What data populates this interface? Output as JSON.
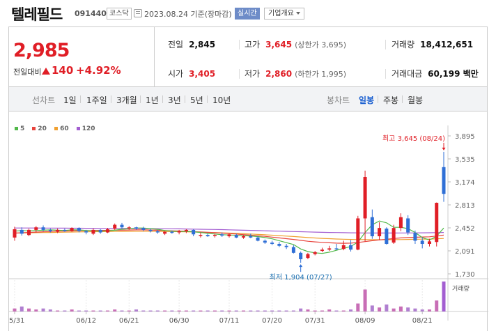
{
  "header": {
    "name": "텔레필드",
    "code": "091440",
    "market": "코스닥",
    "date": "2023.08.24 기준(장마감)",
    "realtime_badge": "실시간",
    "company_info_button": "기업개요"
  },
  "price": {
    "current": "2,985",
    "change_label": "전일대비",
    "change": "140",
    "change_pct": "+4.92%"
  },
  "stats": {
    "prev_label": "전일",
    "prev": "2,845",
    "open_label": "시가",
    "open": "3,405",
    "high_label": "고가",
    "high": "3,645",
    "upper_limit": "(상한가 3,695)",
    "low_label": "저가",
    "low": "2,860",
    "lower_limit": "(하한가 1,995)",
    "volume_label": "거래량",
    "volume": "18,412,651",
    "amount_label": "거래대금",
    "amount": "60,199 백만"
  },
  "toolbar": {
    "line_label": "선차트",
    "periods": [
      "1일",
      "1주일",
      "3개월",
      "1년",
      "3년",
      "5년",
      "10년"
    ],
    "candle_label": "봉차트",
    "candle_periods": [
      "일봉",
      "주봉",
      "월봉"
    ],
    "active_candle": "일봉"
  },
  "colors": {
    "up": "#e01e26",
    "down": "#2f6fd6",
    "ma5": "#50b848",
    "ma20": "#e8433c",
    "ma60": "#f0a030",
    "ma120": "#a35ed1"
  },
  "chart_data": {
    "type": "candlestick",
    "legend": [
      "5",
      "20",
      "60",
      "120"
    ],
    "y_ticks": [
      "3,895",
      "3,535",
      "3,174",
      "2,813",
      "2,452",
      "2,091",
      "1,730"
    ],
    "ylim": [
      1730,
      3895
    ],
    "x_ticks": [
      "05/31",
      "06/12",
      "06/21",
      "06/30",
      "07/11",
      "07/20",
      "07/31",
      "08/09",
      "08/21"
    ],
    "x_tick_index": [
      0,
      10,
      16,
      23,
      30,
      36,
      42,
      49,
      57
    ],
    "high_annotation": "최고 3,645 (08/24)",
    "low_annotation": "최저 1,904 (07/27)",
    "volume_label": "거래량",
    "candles": [
      {
        "o": 2300,
        "h": 2470,
        "l": 2250,
        "c": 2430
      },
      {
        "o": 2420,
        "h": 2460,
        "l": 2330,
        "c": 2360
      },
      {
        "o": 2340,
        "h": 2440,
        "l": 2320,
        "c": 2420
      },
      {
        "o": 2420,
        "h": 2480,
        "l": 2380,
        "c": 2460
      },
      {
        "o": 2460,
        "h": 2490,
        "l": 2400,
        "c": 2420
      },
      {
        "o": 2420,
        "h": 2440,
        "l": 2380,
        "c": 2400
      },
      {
        "o": 2390,
        "h": 2440,
        "l": 2370,
        "c": 2420
      },
      {
        "o": 2420,
        "h": 2440,
        "l": 2390,
        "c": 2400
      },
      {
        "o": 2400,
        "h": 2460,
        "l": 2390,
        "c": 2450
      },
      {
        "o": 2450,
        "h": 2460,
        "l": 2380,
        "c": 2400
      },
      {
        "o": 2400,
        "h": 2420,
        "l": 2350,
        "c": 2380
      },
      {
        "o": 2360,
        "h": 2440,
        "l": 2340,
        "c": 2420
      },
      {
        "o": 2420,
        "h": 2430,
        "l": 2360,
        "c": 2380
      },
      {
        "o": 2380,
        "h": 2450,
        "l": 2370,
        "c": 2430
      },
      {
        "o": 2440,
        "h": 2520,
        "l": 2420,
        "c": 2500
      },
      {
        "o": 2500,
        "h": 2530,
        "l": 2440,
        "c": 2460
      },
      {
        "o": 2450,
        "h": 2480,
        "l": 2420,
        "c": 2460
      },
      {
        "o": 2460,
        "h": 2470,
        "l": 2420,
        "c": 2440
      },
      {
        "o": 2450,
        "h": 2470,
        "l": 2400,
        "c": 2420
      },
      {
        "o": 2420,
        "h": 2440,
        "l": 2380,
        "c": 2400
      },
      {
        "o": 2400,
        "h": 2420,
        "l": 2360,
        "c": 2380
      },
      {
        "o": 2360,
        "h": 2400,
        "l": 2340,
        "c": 2390
      },
      {
        "o": 2390,
        "h": 2410,
        "l": 2360,
        "c": 2380
      },
      {
        "o": 2380,
        "h": 2420,
        "l": 2350,
        "c": 2400
      },
      {
        "o": 2400,
        "h": 2430,
        "l": 2370,
        "c": 2420
      },
      {
        "o": 2420,
        "h": 2430,
        "l": 2320,
        "c": 2350
      },
      {
        "o": 2330,
        "h": 2380,
        "l": 2300,
        "c": 2340
      },
      {
        "o": 2340,
        "h": 2360,
        "l": 2310,
        "c": 2320
      },
      {
        "o": 2330,
        "h": 2360,
        "l": 2300,
        "c": 2340
      },
      {
        "o": 2350,
        "h": 2380,
        "l": 2310,
        "c": 2330
      },
      {
        "o": 2320,
        "h": 2360,
        "l": 2300,
        "c": 2350
      },
      {
        "o": 2340,
        "h": 2360,
        "l": 2290,
        "c": 2300
      },
      {
        "o": 2300,
        "h": 2340,
        "l": 2280,
        "c": 2320
      },
      {
        "o": 2320,
        "h": 2360,
        "l": 2290,
        "c": 2300
      },
      {
        "o": 2300,
        "h": 2320,
        "l": 2240,
        "c": 2250
      },
      {
        "o": 2250,
        "h": 2270,
        "l": 2200,
        "c": 2220
      },
      {
        "o": 2220,
        "h": 2250,
        "l": 2180,
        "c": 2200
      },
      {
        "o": 2200,
        "h": 2230,
        "l": 2150,
        "c": 2170
      },
      {
        "o": 2170,
        "h": 2200,
        "l": 2120,
        "c": 2150
      },
      {
        "o": 2150,
        "h": 2180,
        "l": 2050,
        "c": 2060
      },
      {
        "o": 2060,
        "h": 2080,
        "l": 1904,
        "c": 1960
      },
      {
        "o": 1980,
        "h": 2060,
        "l": 1960,
        "c": 2040
      },
      {
        "o": 2040,
        "h": 2090,
        "l": 2020,
        "c": 2070
      },
      {
        "o": 2090,
        "h": 2140,
        "l": 2070,
        "c": 2110
      },
      {
        "o": 2110,
        "h": 2170,
        "l": 2090,
        "c": 2130
      },
      {
        "o": 2130,
        "h": 2200,
        "l": 2100,
        "c": 2120
      },
      {
        "o": 2120,
        "h": 2250,
        "l": 2100,
        "c": 2180
      },
      {
        "o": 2180,
        "h": 2260,
        "l": 2080,
        "c": 2110
      },
      {
        "o": 2110,
        "h": 2640,
        "l": 2100,
        "c": 2600
      },
      {
        "o": 2600,
        "h": 3350,
        "l": 2240,
        "c": 3250
      },
      {
        "o": 2620,
        "h": 2740,
        "l": 2280,
        "c": 2320
      },
      {
        "o": 2320,
        "h": 2540,
        "l": 2260,
        "c": 2450
      },
      {
        "o": 2440,
        "h": 2460,
        "l": 2190,
        "c": 2200
      },
      {
        "o": 2220,
        "h": 2500,
        "l": 2200,
        "c": 2450
      },
      {
        "o": 2450,
        "h": 2680,
        "l": 2400,
        "c": 2620
      },
      {
        "o": 2600,
        "h": 2650,
        "l": 2340,
        "c": 2380
      },
      {
        "o": 2370,
        "h": 2410,
        "l": 2200,
        "c": 2250
      },
      {
        "o": 2250,
        "h": 2300,
        "l": 2130,
        "c": 2200
      },
      {
        "o": 2200,
        "h": 2280,
        "l": 2160,
        "c": 2240
      },
      {
        "o": 2230,
        "h": 2850,
        "l": 2160,
        "c": 2845
      },
      {
        "o": 3405,
        "h": 3645,
        "l": 2860,
        "c": 2985
      }
    ],
    "ma5": [
      2400,
      2410,
      2405,
      2410,
      2415,
      2420,
      2415,
      2410,
      2420,
      2420,
      2410,
      2405,
      2400,
      2405,
      2415,
      2430,
      2440,
      2450,
      2450,
      2440,
      2430,
      2410,
      2400,
      2395,
      2395,
      2390,
      2380,
      2365,
      2355,
      2345,
      2340,
      2335,
      2330,
      2325,
      2315,
      2300,
      2280,
      2250,
      2220,
      2190,
      2120,
      2080,
      2060,
      2050,
      2070,
      2100,
      2130,
      2160,
      2230,
      2380,
      2500,
      2560,
      2530,
      2460,
      2460,
      2440,
      2380,
      2300,
      2260,
      2320,
      2450
    ],
    "ma20": [
      2370,
      2375,
      2380,
      2385,
      2390,
      2395,
      2400,
      2400,
      2405,
      2408,
      2410,
      2410,
      2412,
      2412,
      2414,
      2416,
      2418,
      2420,
      2420,
      2418,
      2415,
      2410,
      2406,
      2402,
      2398,
      2392,
      2388,
      2382,
      2376,
      2370,
      2362,
      2354,
      2346,
      2338,
      2328,
      2318,
      2306,
      2294,
      2282,
      2270,
      2256,
      2242,
      2232,
      2224,
      2218,
      2212,
      2210,
      2212,
      2222,
      2236,
      2250,
      2262,
      2272,
      2284,
      2294,
      2300,
      2304,
      2308,
      2312,
      2324,
      2338
    ],
    "ma60": [
      2370,
      2372,
      2374,
      2376,
      2378,
      2380,
      2382,
      2384,
      2386,
      2388,
      2390,
      2392,
      2393,
      2394,
      2395,
      2396,
      2397,
      2398,
      2398,
      2398,
      2397,
      2396,
      2394,
      2392,
      2390,
      2387,
      2384,
      2381,
      2378,
      2374,
      2370,
      2365,
      2360,
      2355,
      2349,
      2343,
      2337,
      2330,
      2323,
      2316,
      2308,
      2300,
      2293,
      2287,
      2282,
      2277,
      2273,
      2270,
      2268,
      2267,
      2266,
      2266,
      2266,
      2267,
      2268,
      2270,
      2272,
      2274,
      2276,
      2280,
      2286
    ],
    "ma120": [
      2450,
      2450,
      2449,
      2449,
      2448,
      2448,
      2447,
      2447,
      2446,
      2446,
      2445,
      2445,
      2444,
      2444,
      2443,
      2443,
      2442,
      2442,
      2441,
      2440,
      2439,
      2438,
      2437,
      2436,
      2434,
      2432,
      2430,
      2428,
      2426,
      2424,
      2421,
      2418,
      2415,
      2412,
      2409,
      2406,
      2403,
      2400,
      2397,
      2394,
      2391,
      2388,
      2385,
      2382,
      2380,
      2378,
      2376,
      2374,
      2373,
      2372,
      2371,
      2371,
      2371,
      2371,
      2372,
      2372,
      2373,
      2374,
      2375,
      2377,
      2380
    ],
    "volume": [
      3,
      5,
      3,
      2,
      3,
      2,
      1,
      1,
      2,
      1,
      1,
      1,
      1,
      1,
      2,
      1,
      1,
      2,
      1,
      1,
      1,
      1,
      1,
      1,
      1,
      1,
      1,
      1,
      1,
      1,
      1,
      1,
      1,
      1,
      1,
      1,
      1,
      1,
      1,
      1,
      3,
      2,
      1,
      1,
      2,
      1,
      1,
      2,
      8,
      22,
      6,
      4,
      7,
      3,
      5,
      4,
      3,
      2,
      2,
      11,
      30
    ],
    "volume_max": 30
  }
}
